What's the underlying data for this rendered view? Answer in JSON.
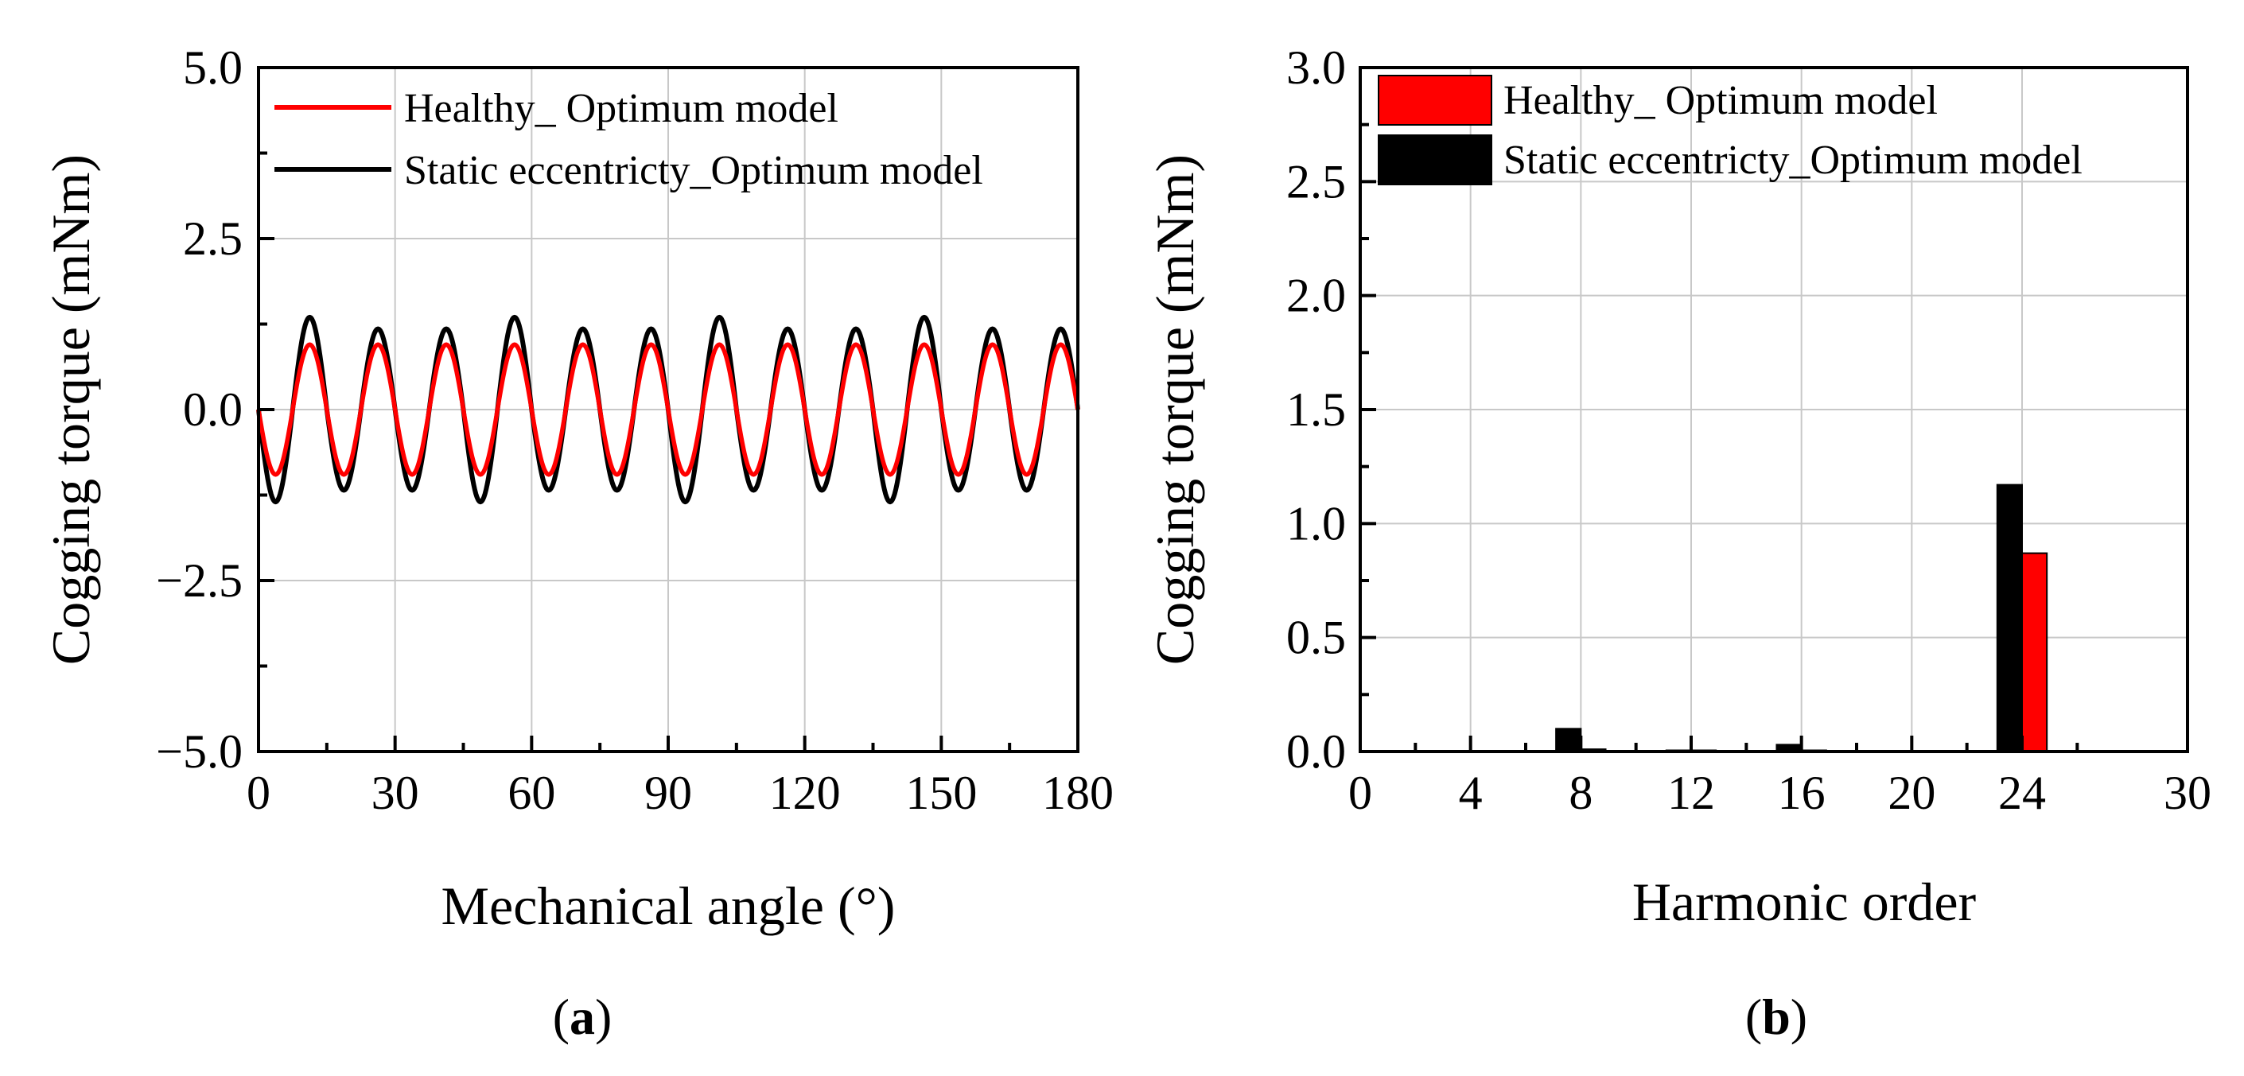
{
  "colors": {
    "healthy": "#ff0000",
    "eccentric": "#000000",
    "grid": "#c8c8c8"
  },
  "panels": [
    {
      "label_open": "(",
      "label_letter": "a",
      "label_close": ")"
    },
    {
      "label_open": "(",
      "label_letter": "b",
      "label_close": ")"
    }
  ],
  "chart_data": [
    {
      "type": "line",
      "xlabel": "Mechanical angle (°)",
      "ylabel": "Cogging torque (mNm)",
      "xlim": [
        0,
        180
      ],
      "ylim": [
        -5.0,
        5.0
      ],
      "xticks": [
        "0",
        "30",
        "60",
        "90",
        "120",
        "150",
        "180"
      ],
      "yticks": [
        "5.0",
        "2.5",
        "0.0",
        "−2.5",
        "−5.0"
      ],
      "grid": true,
      "legend_position": "top-left",
      "period_deg": 15,
      "series": [
        {
          "name": "Healthy_ Optimum model",
          "color": "#ff0000",
          "amplitude": 0.95,
          "amplitude_alt": 0.95
        },
        {
          "name": "Static eccentricty_Optimum model",
          "color": "#000000",
          "amplitude": 1.35,
          "amplitude_alt": 1.18
        }
      ]
    },
    {
      "type": "bar",
      "xlabel": "Harmonic order",
      "ylabel": "Cogging torque (mNm)",
      "xlim": [
        0,
        30
      ],
      "ylim": [
        0.0,
        3.0
      ],
      "xticks": [
        "0",
        "4",
        "8",
        "12",
        "16",
        "20",
        "24",
        "30"
      ],
      "yticks": [
        "3.0",
        "2.5",
        "2.0",
        "1.5",
        "1.0",
        "0.5",
        "0.0"
      ],
      "grid": true,
      "legend_position": "top-left",
      "categories": [
        8,
        12,
        16,
        24
      ],
      "series": [
        {
          "name": "Healthy_ Optimum model",
          "color": "#ff0000",
          "values": [
            0.01,
            0.002,
            0.003,
            0.87
          ]
        },
        {
          "name": "Static eccentricty_Optimum model",
          "color": "#000000",
          "values": [
            0.1,
            0.003,
            0.03,
            1.17
          ]
        }
      ]
    }
  ]
}
